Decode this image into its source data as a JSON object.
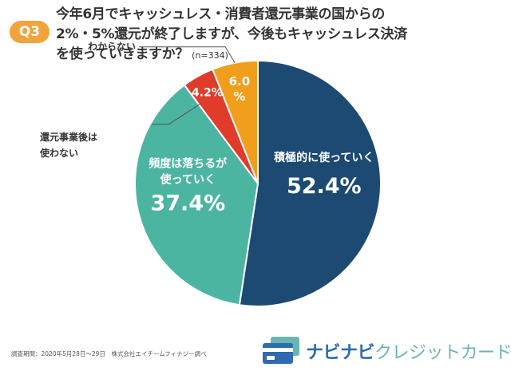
{
  "badge": "Q3",
  "title": {
    "line1": "今年6月でキャッシュレス・消費者還元事業の国からの",
    "line2": "2%・5%還元が終了しますが、今後もキャッシュレス決済",
    "line3": "を使っていきますか？",
    "sample": "(n=334)"
  },
  "chart_data": {
    "type": "pie",
    "start": "12 o'clock",
    "direction": "clockwise",
    "slices": [
      {
        "label": "積極的に使っていく",
        "label_lines": [
          "積極的に使っていく"
        ],
        "value": 52.4,
        "value_text": "52.4%",
        "color": "#1d4a72"
      },
      {
        "label": "頻度は落ちるが使っていく",
        "label_lines": [
          "頻度は落ちるが",
          "使っていく"
        ],
        "value": 37.4,
        "value_text": "37.4%",
        "color": "#4bb5a2"
      },
      {
        "label": "還元事業後は使わない",
        "label_lines": [
          "還元事業後は",
          "使わない"
        ],
        "value": 4.2,
        "value_text": "4.2%",
        "color": "#e03b2b"
      },
      {
        "label": "わからない",
        "label_lines": [
          "わからない"
        ],
        "value": 6.0,
        "value_text_lines": [
          "6.0",
          "%"
        ],
        "color": "#f09e1c"
      }
    ]
  },
  "footnote": "調査期間：2020年5月28日〜29日　株式会社エイチームフィナジー調べ",
  "logo": {
    "part1": "ナビナビ",
    "part2": "クレジットカード"
  }
}
